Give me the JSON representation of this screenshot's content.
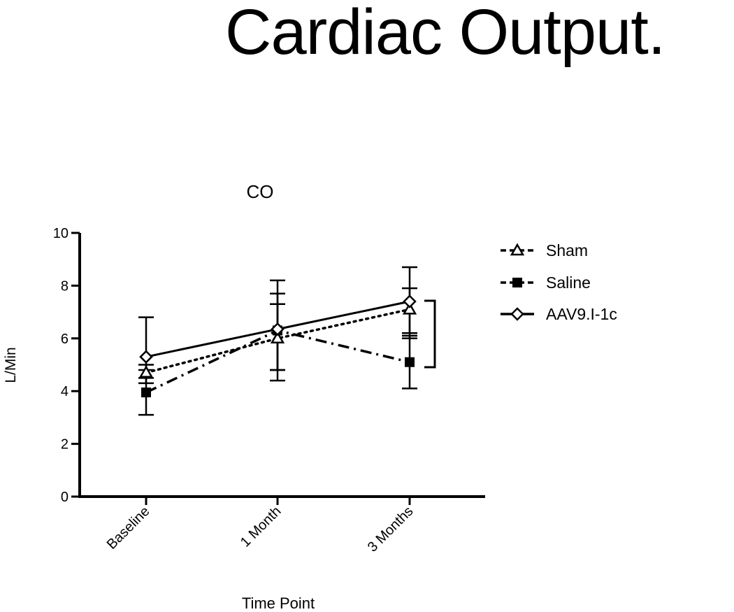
{
  "slide": {
    "title": "Cardiac Output."
  },
  "chart_data": {
    "type": "line",
    "title": "CO",
    "xlabel": "Time Point",
    "ylabel": "L/Min",
    "categories": [
      "Baseline",
      "1 Month",
      "3 Months"
    ],
    "ylim": [
      0,
      10
    ],
    "yticks": [
      0,
      2,
      4,
      6,
      8,
      10
    ],
    "grid": false,
    "legend_position": "right",
    "series": [
      {
        "name": "Sham",
        "marker": "triangle-open",
        "line": "dotted",
        "values": [
          4.7,
          6.0,
          7.1
        ],
        "err_upper": [
          5.0,
          7.3,
          7.9
        ],
        "err_lower": [
          4.3,
          4.8,
          6.2
        ]
      },
      {
        "name": "Saline",
        "marker": "square-filled",
        "line": "dash-dot",
        "values": [
          3.95,
          6.3,
          5.1
        ],
        "err_upper": [
          4.8,
          7.7,
          6.1
        ],
        "err_lower": [
          3.1,
          4.8,
          4.1
        ]
      },
      {
        "name": "AAV9.I-1c",
        "marker": "diamond-open",
        "line": "solid",
        "values": [
          5.3,
          6.35,
          7.4
        ],
        "err_upper": [
          6.8,
          8.2,
          8.7
        ],
        "err_lower": [
          4.5,
          4.4,
          6.0
        ]
      }
    ],
    "annotation": "significance bracket at 3 Months"
  }
}
